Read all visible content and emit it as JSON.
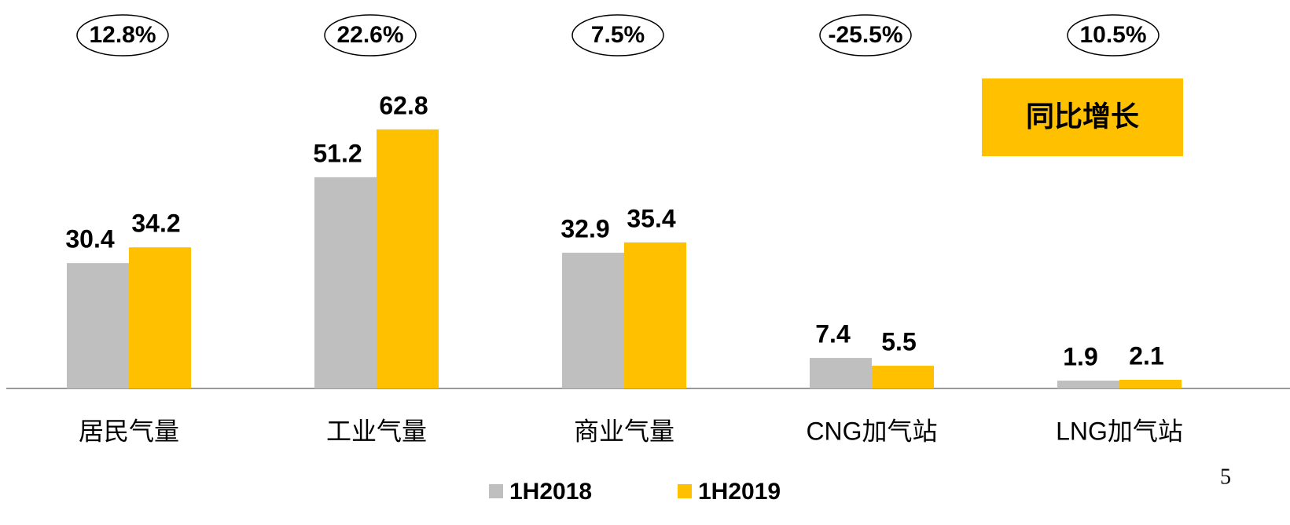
{
  "chart_data": {
    "type": "bar",
    "categories": [
      "居民气量",
      "工业气量",
      "商业气量",
      "CNG加气站",
      "LNG加气站"
    ],
    "series": [
      {
        "name": "1H2018",
        "color": "#bfbfbf",
        "values": [
          30.4,
          51.2,
          32.9,
          7.4,
          1.9
        ]
      },
      {
        "name": "1H2019",
        "color": "#ffc000",
        "values": [
          34.2,
          62.8,
          35.4,
          5.5,
          2.1
        ]
      }
    ],
    "annotations": [
      "12.8%",
      "22.6%",
      "7.5%",
      "-25.5%",
      "10.5%"
    ],
    "label_box": "同比增长",
    "page_number": "5",
    "ylim": [
      0,
      70
    ],
    "legend": "bottom"
  }
}
